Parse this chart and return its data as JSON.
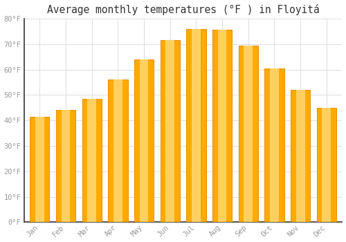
{
  "title": "Average monthly temperatures (°F ) in Floyitá",
  "months": [
    "Jan",
    "Feb",
    "Mar",
    "Apr",
    "May",
    "Jun",
    "Jul",
    "Aug",
    "Sep",
    "Oct",
    "Nov",
    "Dec"
  ],
  "values": [
    41.5,
    44.0,
    48.5,
    56.0,
    64.0,
    71.5,
    76.0,
    75.5,
    69.5,
    60.5,
    52.0,
    45.0
  ],
  "bar_color_main": "#FFAA00",
  "bar_color_light": "#FFD060",
  "bar_color_edge": "#E8920A",
  "background_color": "#FFFFFF",
  "grid_color": "#DDDDDD",
  "ylim": [
    0,
    80
  ],
  "yticks": [
    0,
    10,
    20,
    30,
    40,
    50,
    60,
    70,
    80
  ],
  "tick_label_color": "#999999",
  "title_color": "#333333",
  "title_fontsize": 10.5,
  "axis_color": "#333333",
  "bar_width": 0.75
}
